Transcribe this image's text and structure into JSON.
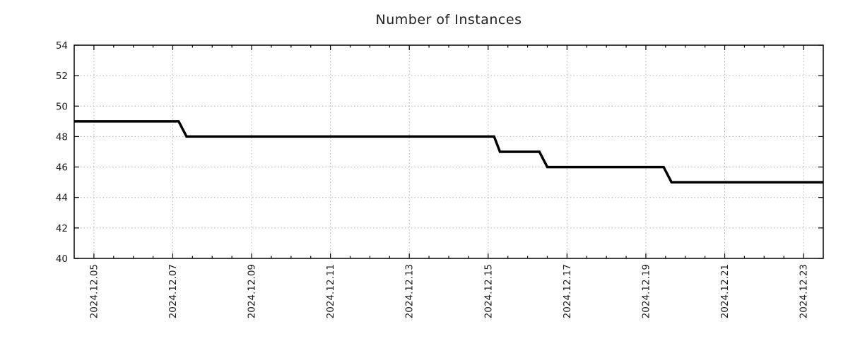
{
  "chart_data": {
    "type": "line",
    "title": "Number of Instances",
    "grid": true,
    "legend_position": "none",
    "line_style": "step-like solid",
    "colors": {
      "line": "#000000",
      "grid": "#b3b3b3",
      "axis": "#000000",
      "text": "#1c1c1c",
      "background": "#ffffff"
    },
    "x_axis": {
      "label": "",
      "unit": "date (day of December 2024)",
      "range_days": [
        4.5,
        23.5
      ],
      "minor_tick_step_days": 0.5,
      "major_ticks": [
        {
          "day": 5,
          "label": "2024.12.05"
        },
        {
          "day": 7,
          "label": "2024.12.07"
        },
        {
          "day": 9,
          "label": "2024.12.09"
        },
        {
          "day": 11,
          "label": "2024.12.11"
        },
        {
          "day": 13,
          "label": "2024.12.13"
        },
        {
          "day": 15,
          "label": "2024.12.15"
        },
        {
          "day": 17,
          "label": "2024.12.17"
        },
        {
          "day": 19,
          "label": "2024.12.19"
        },
        {
          "day": 21,
          "label": "2024.12.21"
        },
        {
          "day": 23,
          "label": "2024.12.23"
        }
      ]
    },
    "y_axis": {
      "label": "",
      "range": [
        40,
        54
      ],
      "tick_step": 2,
      "ticks": [
        40,
        42,
        44,
        46,
        48,
        50,
        52,
        54
      ]
    },
    "series": [
      {
        "name": "Number of Instances",
        "points_day_value": [
          [
            4.5,
            49
          ],
          [
            7.15,
            49
          ],
          [
            7.35,
            48
          ],
          [
            15.15,
            48
          ],
          [
            15.3,
            47
          ],
          [
            16.3,
            47
          ],
          [
            16.5,
            46
          ],
          [
            19.45,
            46
          ],
          [
            19.65,
            45
          ],
          [
            23.5,
            45
          ]
        ]
      }
    ],
    "steps_readout": [
      {
        "value": 49,
        "from": "left edge (~2024.12.04)",
        "to": "~2024.12.07 morning"
      },
      {
        "value": 48,
        "from": "~2024.12.07 morning",
        "to": "~2024.12.15 morning"
      },
      {
        "value": 47,
        "from": "~2024.12.15 morning",
        "to": "~2024.12.16 midday"
      },
      {
        "value": 46,
        "from": "~2024.12.16 midday",
        "to": "~2024.12.19 midday"
      },
      {
        "value": 45,
        "from": "~2024.12.19 midday",
        "to": "right edge (~2024.12.23)"
      }
    ]
  }
}
